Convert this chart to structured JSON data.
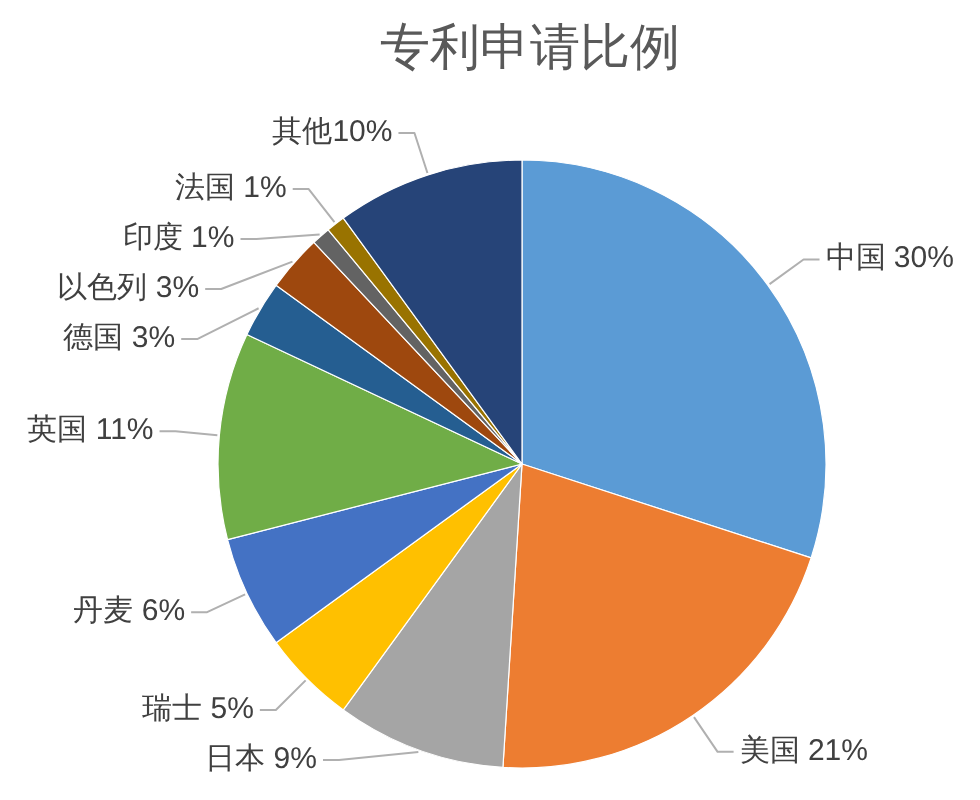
{
  "chart_data": {
    "type": "pie",
    "title": "专利申请比例",
    "categories": [
      "中国",
      "美国",
      "日本",
      "瑞士",
      "丹麦",
      "英国",
      "德国",
      "以色列",
      "印度",
      "法国",
      "其他"
    ],
    "values": [
      30,
      21,
      9,
      5,
      6,
      11,
      3,
      3,
      1,
      1,
      10
    ],
    "colors": [
      "#5b9bd5",
      "#ed7d31",
      "#a5a5a5",
      "#ffc000",
      "#4472c4",
      "#70ad47",
      "#255e91",
      "#9e480e",
      "#636363",
      "#997300",
      "#264478"
    ],
    "value_labels": [
      " 30%",
      " 21%",
      " 9%",
      " 5%",
      " 6%",
      " 11%",
      " 3%",
      " 3%",
      " 1%",
      " 1%",
      "10%"
    ]
  }
}
